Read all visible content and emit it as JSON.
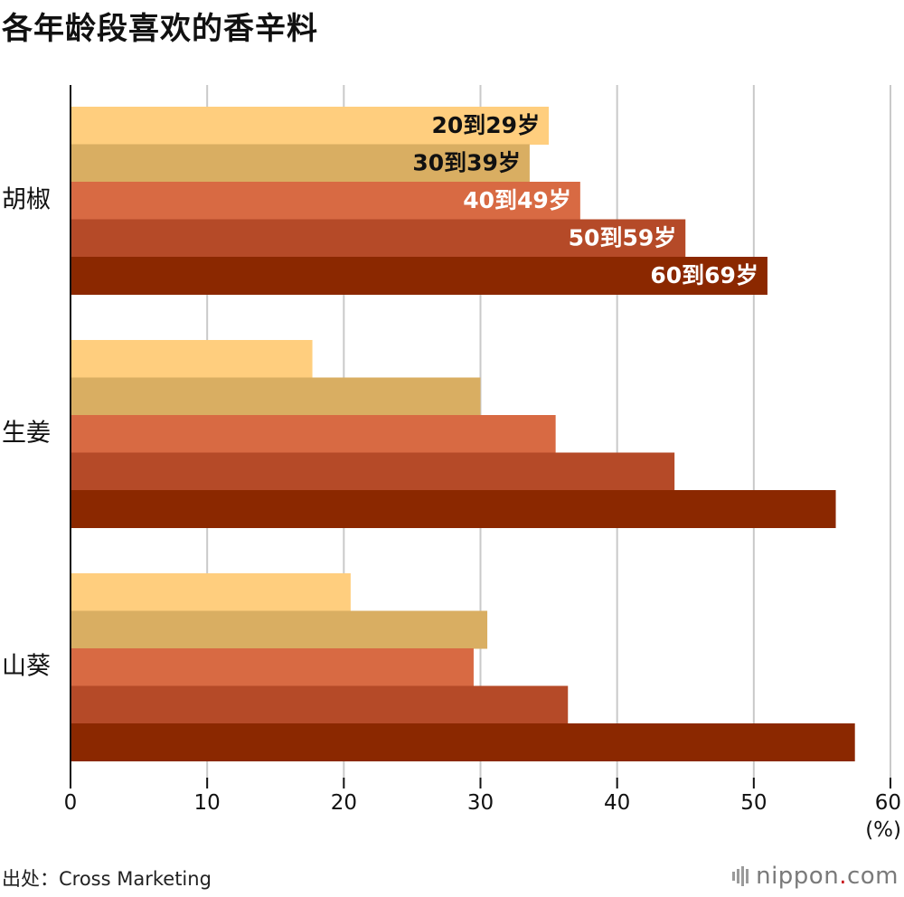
{
  "title": "各年龄段喜欢的香辛料",
  "source": "出处：Cross Marketing",
  "logo": {
    "main": "nippon",
    "dot": ".",
    "suffix": "com"
  },
  "chart_data": {
    "type": "bar",
    "orientation": "horizontal",
    "title": "各年龄段喜欢的香辛料",
    "categories": [
      "胡椒",
      "生姜",
      "山葵"
    ],
    "series": [
      {
        "name": "20到29岁",
        "values": [
          35.0,
          17.7,
          20.5
        ],
        "color": "#ffce7e",
        "label_color": "#111111"
      },
      {
        "name": "30到39岁",
        "values": [
          33.6,
          30.0,
          30.5
        ],
        "color": "#d9ae62",
        "label_color": "#111111"
      },
      {
        "name": "40到49岁",
        "values": [
          37.3,
          35.5,
          29.5
        ],
        "color": "#d86a43",
        "label_color": "#ffffff"
      },
      {
        "name": "50到59岁",
        "values": [
          45.0,
          44.2,
          36.4
        ],
        "color": "#b54a28",
        "label_color": "#ffffff"
      },
      {
        "name": "60到69岁",
        "values": [
          51.0,
          56.0,
          57.4
        ],
        "color": "#8b2800",
        "label_color": "#ffffff"
      }
    ],
    "xlim": [
      0,
      60
    ],
    "xticks": [
      "0",
      "10",
      "20",
      "30",
      "40",
      "50",
      "60"
    ],
    "unit_label": "(%)",
    "grid": true,
    "legend": "inline labels on first category bars"
  }
}
